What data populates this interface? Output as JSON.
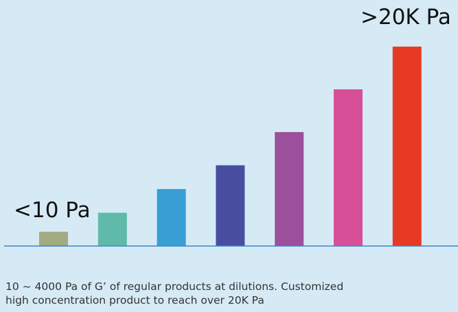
{
  "chart_data": {
    "type": "bar",
    "values": [
      3,
      7,
      12,
      17,
      24,
      33,
      42
    ],
    "colors": [
      "#a2aa80",
      "#5fbaaa",
      "#389fd4",
      "#4a4ea0",
      "#9c4f9a",
      "#d84f99",
      "#e63a24"
    ],
    "ylim": [
      0,
      44
    ],
    "grid": false,
    "baseline_color": "#3a86c8",
    "annotations": {
      "low": "<10 Pa",
      "high": ">20K Pa"
    }
  },
  "caption": {
    "line1": "10 ~ 4000 Pa of G’ of regular products at dilutions. Customized",
    "line2": "high concentration product to reach over 20K Pa"
  }
}
